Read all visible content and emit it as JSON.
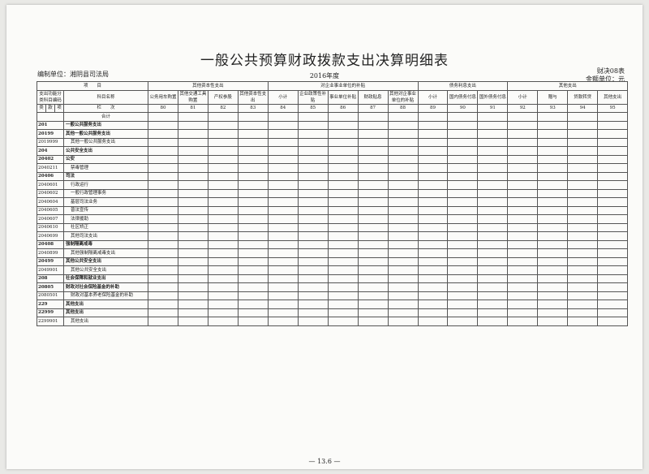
{
  "header": {
    "title": "一般公共预算财政拨款支出决算明细表",
    "unit": "编制单位：湘阴县司法局",
    "year": "2016年度",
    "form_no": "财决08表",
    "currency_unit": "金额单位：元"
  },
  "table": {
    "item_header": "项　　目",
    "code_header": "支出功能分类科目编码",
    "name_header": "科目名称",
    "code_sub": [
      "类",
      "款",
      "项"
    ],
    "groups": [
      {
        "name": "其他资本性支出",
        "columns": [
          {
            "name": "公务用车购置",
            "no": 80
          },
          {
            "name": "其他交通工具购置",
            "no": 81
          },
          {
            "name": "产权参股",
            "no": 82
          },
          {
            "name": "其他资本性支出",
            "no": 83
          }
        ]
      },
      {
        "name": "对企业事业单位的补贴",
        "columns": [
          {
            "name": "小计",
            "no": 84
          },
          {
            "name": "企业政策性补贴",
            "no": 85
          },
          {
            "name": "事业单位补贴",
            "no": 86
          },
          {
            "name": "财政贴息",
            "no": 87
          },
          {
            "name": "其他对企事业单位的补贴",
            "no": 88
          }
        ]
      },
      {
        "name": "债务利息支出",
        "columns": [
          {
            "name": "小计",
            "no": 89
          },
          {
            "name": "国内债务付息",
            "no": 90
          },
          {
            "name": "国外债务付息",
            "no": 91
          }
        ]
      },
      {
        "name": "其他支出",
        "columns": [
          {
            "name": "小计",
            "no": 92
          },
          {
            "name": "赠与",
            "no": 93
          },
          {
            "name": "贷款转贷",
            "no": 94
          },
          {
            "name": "其他支出",
            "no": 95
          }
        ]
      }
    ],
    "column_no_label": "栏　　次",
    "total_label": "合计",
    "rows": [
      {
        "code": "201",
        "name": "一般公共服务支出"
      },
      {
        "code": "20199",
        "name": "其他一般公共服务支出"
      },
      {
        "code": "2019999",
        "name": "其他一般公共服务支出"
      },
      {
        "code": "204",
        "name": "公共安全支出"
      },
      {
        "code": "20402",
        "name": "公安"
      },
      {
        "code": "2040211",
        "name": "禁毒管理"
      },
      {
        "code": "20406",
        "name": "司法"
      },
      {
        "code": "2040601",
        "name": "行政运行"
      },
      {
        "code": "2040602",
        "name": "一般行政管理事务"
      },
      {
        "code": "2040604",
        "name": "基层司法业务"
      },
      {
        "code": "2040605",
        "name": "普法宣传"
      },
      {
        "code": "2040607",
        "name": "法律援助"
      },
      {
        "code": "2040610",
        "name": "社区矫正"
      },
      {
        "code": "2040699",
        "name": "其他司法支出"
      },
      {
        "code": "20408",
        "name": "强制隔离戒毒"
      },
      {
        "code": "2040899",
        "name": "其他强制隔离戒毒支出"
      },
      {
        "code": "20499",
        "name": "其他公共安全支出"
      },
      {
        "code": "2049901",
        "name": "其他公共安全支出"
      },
      {
        "code": "208",
        "name": "社会保障和就业支出"
      },
      {
        "code": "20805",
        "name": "财政对社会保险基金的补助"
      },
      {
        "code": "2080501",
        "name": "财政对基本养老保险基金的补助"
      },
      {
        "code": "229",
        "name": "其他支出"
      },
      {
        "code": "22999",
        "name": "其他支出"
      },
      {
        "code": "2299901",
        "name": "其他支出"
      }
    ]
  },
  "footer": {
    "page": "— 13.6 —"
  }
}
